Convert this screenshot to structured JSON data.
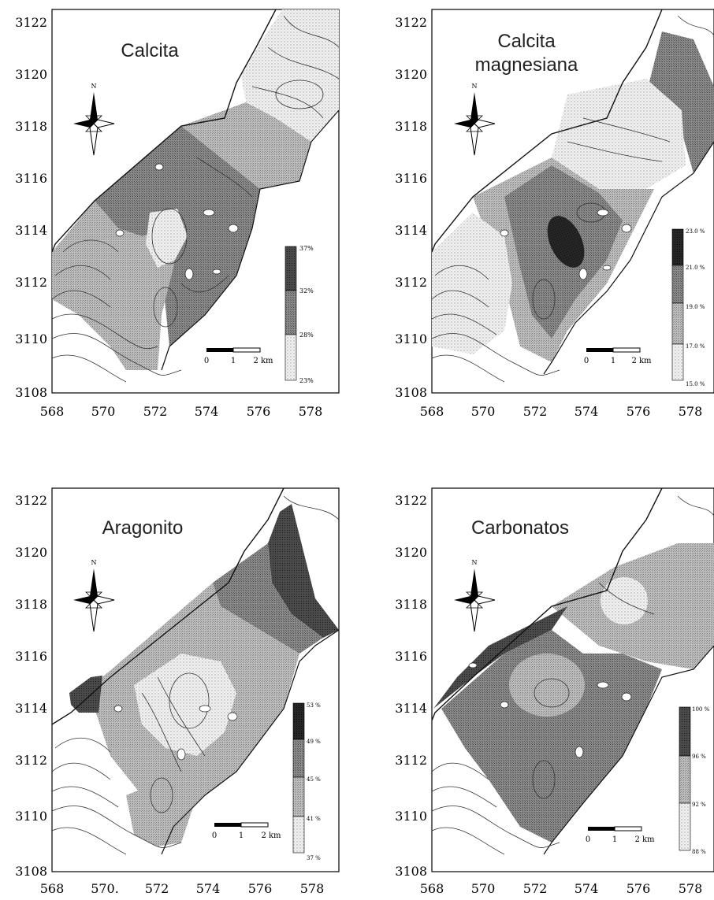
{
  "panels": [
    {
      "title_lines": [
        "Calcita"
      ],
      "y_ticks": [
        "3122",
        "3120",
        "3118",
        "3116",
        "3114",
        "3112",
        "3110",
        "3108"
      ],
      "x_ticks": [
        "568",
        "570",
        "572",
        "574",
        "576",
        "578"
      ],
      "legend_labels": [
        "37%",
        "32%",
        "28%",
        "23%"
      ],
      "scalebar_labels": [
        "0",
        "1",
        "2 km"
      ],
      "north_label": "N"
    },
    {
      "title_lines": [
        "Calcita",
        "magnesiana"
      ],
      "y_ticks": [
        "3122",
        "3120",
        "3118",
        "3116",
        "3114",
        "3112",
        "3110",
        "3108"
      ],
      "x_ticks": [
        "568",
        "570",
        "572",
        "574",
        "576",
        "578"
      ],
      "legend_labels": [
        "23.0 %",
        "21.0 %",
        "19.0 %",
        "17.0 %",
        "15.0 %"
      ],
      "scalebar_labels": [
        "0",
        "1",
        "2 km"
      ],
      "north_label": "N"
    },
    {
      "title_lines": [
        "Aragonito"
      ],
      "y_ticks": [
        "3122",
        "3120",
        "3118",
        "3116",
        "3114",
        "3112",
        "3110",
        "3108"
      ],
      "x_ticks": [
        "568",
        "570.",
        "572",
        "574",
        "576",
        "578"
      ],
      "legend_labels": [
        "53 %",
        "49 %",
        "45 %",
        "41 %",
        "37 %"
      ],
      "scalebar_labels": [
        "0",
        "1",
        "2 km"
      ],
      "north_label": "N"
    },
    {
      "title_lines": [
        "Carbonatos"
      ],
      "y_ticks": [
        "3122",
        "3120",
        "3118",
        "3116",
        "3114",
        "3112",
        "3110",
        "3108"
      ],
      "x_ticks": [
        "568",
        "570",
        "572",
        "574",
        "576",
        "578"
      ],
      "legend_labels": [
        "100 %",
        "96 %",
        "92 %",
        "88 %"
      ],
      "scalebar_labels": [
        "0",
        "1",
        "2 km"
      ],
      "north_label": "N"
    }
  ]
}
